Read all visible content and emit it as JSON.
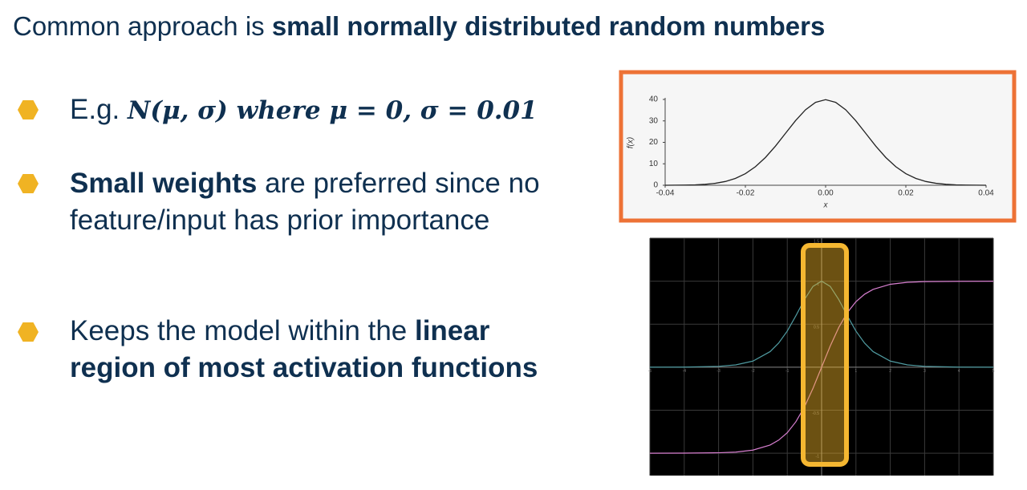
{
  "slide": {
    "title": [
      "Common approach is ",
      "small normally distributed random numbers"
    ],
    "bullets": [
      [
        "E.g. ",
        "N(μ, σ) where μ = 0, σ = 0.01"
      ],
      [
        "Small weights",
        " are preferred since no feature/input has prior importance"
      ],
      [
        "Keeps the model within the ",
        "linear region of most activation functions"
      ]
    ]
  },
  "chart_data": [
    {
      "type": "line",
      "xlabel": "x",
      "ylabel": "f(x)",
      "x": [
        -0.04,
        -0.0375,
        -0.035,
        -0.0325,
        -0.03,
        -0.0275,
        -0.025,
        -0.0225,
        -0.02,
        -0.0175,
        -0.015,
        -0.0125,
        -0.01,
        -0.0075,
        -0.005,
        -0.0025,
        0,
        0.0025,
        0.005,
        0.0075,
        0.01,
        0.0125,
        0.015,
        0.0175,
        0.02,
        0.0225,
        0.025,
        0.0275,
        0.03,
        0.0325,
        0.035,
        0.0375,
        0.04
      ],
      "series": [
        {
          "color": "#222222",
          "values": [
            0.01,
            0.04,
            0.09,
            0.2,
            0.44,
            0.91,
            1.75,
            3.17,
            5.4,
            8.63,
            12.95,
            18.26,
            24.2,
            30.11,
            35.21,
            38.67,
            39.89,
            38.67,
            35.21,
            30.11,
            24.2,
            18.26,
            12.95,
            8.63,
            5.4,
            3.17,
            1.75,
            0.91,
            0.44,
            0.2,
            0.09,
            0.04,
            0.01
          ]
        }
      ],
      "xlim": [
        -0.04,
        0.04
      ],
      "xticks": [
        -0.04,
        -0.02,
        {
          "value": 0,
          "label": "0.00"
        },
        0.02,
        0.04
      ],
      "ylim": [
        0,
        40
      ],
      "yticks": [
        0,
        10,
        20,
        30,
        40
      ]
    },
    {
      "type": "line",
      "grid": true,
      "x": [
        -5,
        -4,
        -3,
        -2.5,
        -2,
        -1.5,
        -1.25,
        -1,
        -0.75,
        -0.5,
        -0.25,
        0,
        0.25,
        0.5,
        0.75,
        1,
        1.25,
        1.5,
        2,
        2.5,
        3,
        4,
        5
      ],
      "series": [
        {
          "color": "#d77fd0",
          "values": [
            -1,
            -0.999,
            -0.995,
            -0.987,
            -0.964,
            -0.905,
            -0.848,
            -0.762,
            -0.635,
            -0.462,
            -0.245,
            0,
            0.245,
            0.462,
            0.635,
            0.762,
            0.848,
            0.905,
            0.964,
            0.987,
            0.995,
            0.999,
            1
          ]
        },
        {
          "color": "#4f9aa0",
          "values": [
            0,
            0.001,
            0.01,
            0.027,
            0.071,
            0.181,
            0.281,
            0.42,
            0.597,
            0.786,
            0.94,
            1,
            0.94,
            0.786,
            0.597,
            0.42,
            0.281,
            0.181,
            0.071,
            0.027,
            0.01,
            0.001,
            0
          ]
        }
      ],
      "xlim": [
        -5,
        5
      ],
      "xticks": [
        -5,
        -4,
        -3,
        -2,
        -1,
        1,
        2,
        3,
        4,
        5
      ],
      "ylim": [
        -1.26,
        1.5
      ],
      "yticks": [
        -1,
        -0.5,
        0.5,
        1,
        1.5
      ]
    }
  ]
}
